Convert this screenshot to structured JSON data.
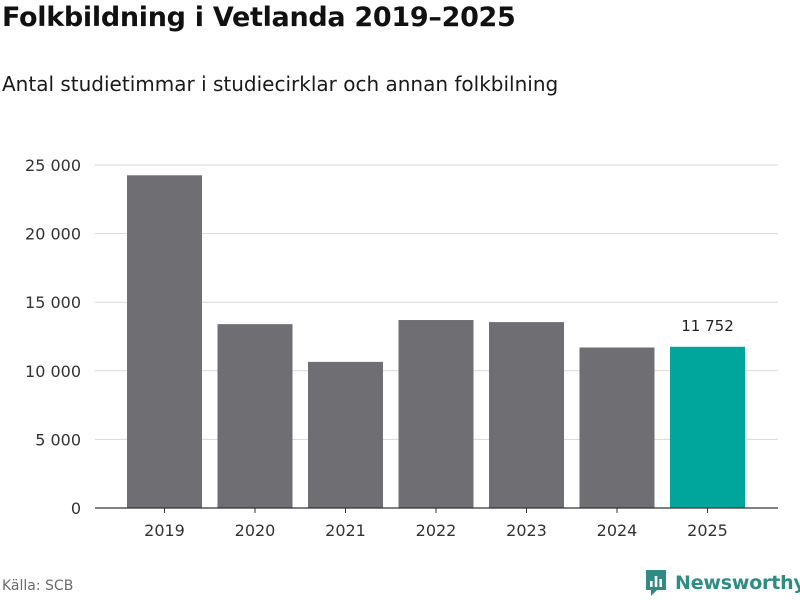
{
  "title": "Folkbildning i Vetlanda 2019–2025",
  "subtitle": "Antal studietimmar i studiecirklar och annan folkbilning",
  "source": "Källa: SCB",
  "brand": {
    "name": "Newsworthy",
    "icon": "bar-chart-badge-icon",
    "color": "#2f8b84"
  },
  "colors": {
    "bar": "#6f6e73",
    "highlight": "#00a59b",
    "grid": "#d9d9d9",
    "axis": "#333333"
  },
  "chart_data": {
    "type": "bar",
    "categories": [
      "2019",
      "2020",
      "2021",
      "2022",
      "2023",
      "2024",
      "2025"
    ],
    "values": [
      24250,
      13400,
      10650,
      13700,
      13550,
      11700,
      11752
    ],
    "ylim": [
      0,
      25000
    ],
    "yticks": [
      0,
      5000,
      10000,
      15000,
      20000,
      25000
    ],
    "ytick_labels": [
      "0",
      "5 000",
      "10 000",
      "15 000",
      "20 000",
      "25 000"
    ],
    "grid": true,
    "highlight_index": 6,
    "annotations": [
      {
        "category": "2025",
        "text": "11 752"
      }
    ]
  }
}
